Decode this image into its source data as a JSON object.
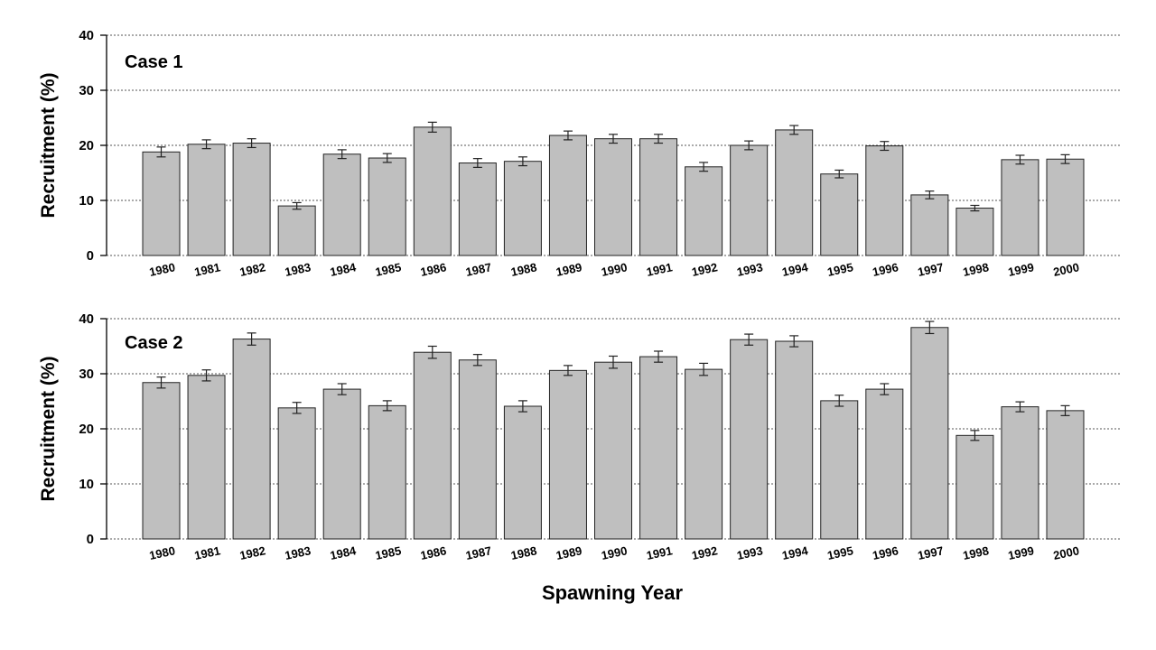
{
  "chart_data": [
    {
      "type": "bar",
      "title": "Case 1",
      "ylabel": "Recruitment (%)",
      "xlabel": "",
      "ylim": [
        0,
        40
      ],
      "yticks": [
        "0",
        "10",
        "20",
        "30",
        "40"
      ],
      "grid": true,
      "categories": [
        "1980",
        "1981",
        "1982",
        "1983",
        "1984",
        "1985",
        "1986",
        "1987",
        "1988",
        "1989",
        "1990",
        "1991",
        "1992",
        "1993",
        "1994",
        "1995",
        "1996",
        "1997",
        "1998",
        "1999",
        "2000"
      ],
      "values": [
        18.8,
        20.2,
        20.4,
        9.0,
        18.4,
        17.7,
        23.3,
        16.8,
        17.1,
        21.8,
        21.2,
        21.2,
        16.1,
        20.0,
        22.8,
        14.8,
        19.9,
        11.0,
        8.6,
        17.4,
        17.5
      ],
      "errors": [
        0.9,
        0.8,
        0.8,
        0.6,
        0.8,
        0.8,
        0.9,
        0.8,
        0.8,
        0.8,
        0.8,
        0.8,
        0.8,
        0.8,
        0.8,
        0.7,
        0.8,
        0.7,
        0.5,
        0.8,
        0.8
      ]
    },
    {
      "type": "bar",
      "title": "Case 2",
      "ylabel": "Recruitment (%)",
      "xlabel": "Spawning Year",
      "ylim": [
        0,
        40
      ],
      "yticks": [
        "0",
        "10",
        "20",
        "30",
        "40"
      ],
      "grid": true,
      "categories": [
        "1980",
        "1981",
        "1982",
        "1983",
        "1984",
        "1985",
        "1986",
        "1987",
        "1988",
        "1989",
        "1990",
        "1991",
        "1992",
        "1993",
        "1994",
        "1995",
        "1996",
        "1997",
        "1998",
        "1999",
        "2000"
      ],
      "values": [
        28.4,
        29.7,
        36.3,
        23.8,
        27.2,
        24.2,
        33.9,
        32.5,
        24.1,
        30.6,
        32.1,
        33.1,
        30.8,
        36.2,
        35.9,
        25.1,
        27.2,
        38.4,
        18.8,
        24.0,
        23.3
      ],
      "errors": [
        1.0,
        1.0,
        1.1,
        1.0,
        1.0,
        0.9,
        1.1,
        1.0,
        1.0,
        0.9,
        1.1,
        1.0,
        1.1,
        1.0,
        1.0,
        1.0,
        1.0,
        1.1,
        0.9,
        0.9,
        0.9
      ]
    }
  ]
}
